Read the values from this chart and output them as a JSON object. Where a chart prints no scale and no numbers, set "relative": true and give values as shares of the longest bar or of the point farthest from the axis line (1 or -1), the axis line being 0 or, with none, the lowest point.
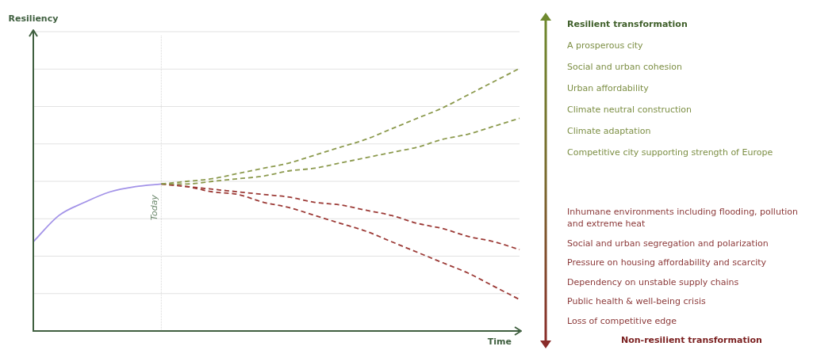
{
  "chart_data": {
    "type": "line",
    "relative": true,
    "xlabel": "Time",
    "grid": "y",
    "tick_labels": false,
    "legend": false,
    "marker": "none",
    "categories": [
      null,
      null,
      null,
      null,
      null,
      null,
      null,
      null,
      null,
      null,
      null,
      null,
      null,
      null,
      null,
      null,
      null,
      null,
      null,
      null
    ],
    "series": [
      {
        "color": "#a393e8",
        "line_style": "solid",
        "values": [
          0.34,
          0.44,
          0.49,
          0.53,
          0.55,
          0.56,
          null,
          null,
          null,
          null,
          null,
          null,
          null,
          null,
          null,
          null,
          null,
          null,
          null,
          null
        ]
      },
      {
        "color": "#8c9a4e",
        "line_style": "dashed",
        "values": [
          null,
          null,
          null,
          null,
          null,
          0.56,
          0.57,
          0.58,
          0.6,
          0.62,
          0.64,
          0.67,
          0.7,
          0.73,
          0.77,
          0.81,
          0.85,
          0.9,
          0.95,
          1.0
        ]
      },
      {
        "color": "#8c9a4e",
        "line_style": "dashed",
        "values": [
          null,
          null,
          null,
          null,
          null,
          0.56,
          0.56,
          0.57,
          0.58,
          0.59,
          0.61,
          0.62,
          0.64,
          0.66,
          0.68,
          0.7,
          0.73,
          0.75,
          0.78,
          0.81
        ]
      },
      {
        "color": "#9c3a36",
        "line_style": "dashed",
        "values": [
          null,
          null,
          null,
          null,
          null,
          0.56,
          0.55,
          0.54,
          0.53,
          0.52,
          0.51,
          0.49,
          0.48,
          0.46,
          0.44,
          0.41,
          0.39,
          0.36,
          0.34,
          0.31
        ]
      },
      {
        "color": "#9c3a36",
        "line_style": "dashed",
        "values": [
          null,
          null,
          null,
          null,
          null,
          0.56,
          0.55,
          0.53,
          0.52,
          0.49,
          0.47,
          0.44,
          0.41,
          0.38,
          0.34,
          0.3,
          0.26,
          0.22,
          0.17,
          0.12
        ]
      }
    ],
    "annotations": [
      "Today",
      "Resiliency",
      "Resilient transformation",
      "A prosperous city",
      "Social and urban cohesion",
      "Urban affordability",
      "Climate neutral construction",
      "Climate adaptation",
      "Competitive city supporting strength of Europe",
      "Inhumane environments including flooding, pollution and extreme heat",
      "Social and urban segregation and polarization",
      "Pressure on housing affordability and scarcity",
      "Dependency on unstable supply chains",
      "Public health & well-being crisis",
      "Loss of competitive edge",
      "Non-resilient transformation"
    ]
  }
}
